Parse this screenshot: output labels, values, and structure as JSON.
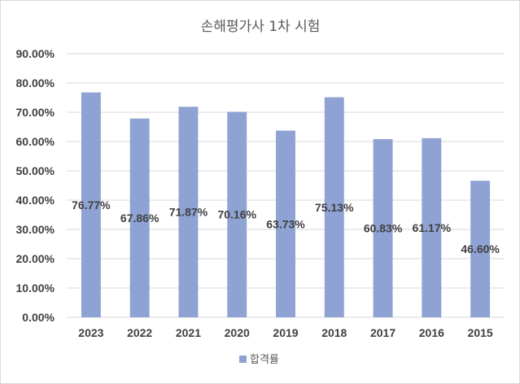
{
  "chart_data": {
    "type": "bar",
    "title": "손해평가사 1차 시험",
    "categories": [
      "2023",
      "2022",
      "2021",
      "2020",
      "2019",
      "2018",
      "2017",
      "2016",
      "2015"
    ],
    "series": [
      {
        "name": "합격률",
        "values": [
          76.77,
          67.86,
          71.87,
          70.16,
          63.73,
          75.13,
          60.83,
          61.17,
          46.6
        ],
        "data_labels": [
          "76.77%",
          "67.86%",
          "71.87%",
          "70.16%",
          "63.73%",
          "75.13%",
          "60.83%",
          "61.17%",
          "46.60%"
        ],
        "color": "#8fa2d4"
      }
    ],
    "y_ticks": [
      "0.00%",
      "10.00%",
      "20.00%",
      "30.00%",
      "40.00%",
      "50.00%",
      "60.00%",
      "70.00%",
      "80.00%",
      "90.00%"
    ],
    "ylim": [
      0,
      90
    ],
    "grid": true,
    "legend_position": "bottom",
    "colors": {
      "gridline": "#d9d9d9",
      "text": "#404040"
    }
  }
}
